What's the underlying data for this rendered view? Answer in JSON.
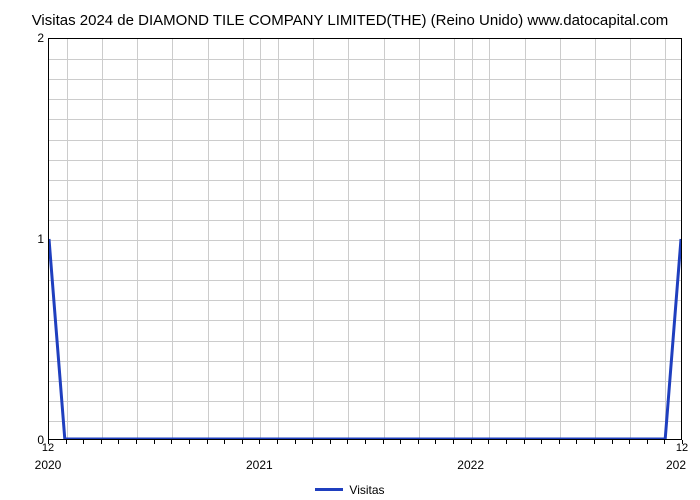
{
  "chart": {
    "type": "line",
    "title": "Visitas 2024 de DIAMOND TILE COMPANY LIMITED(THE) (Reino Unido) www.datocapital.com",
    "title_fontsize": 15,
    "title_color": "#000000",
    "background_color": "#ffffff",
    "plot_border_color": "#000000",
    "grid_color": "#cccccc",
    "ylim": [
      0,
      2
    ],
    "ytick_step": 1,
    "y_ticks": [
      0,
      1,
      2
    ],
    "x_axis": {
      "start": 2020,
      "end": 2023,
      "major_ticks": [
        2020,
        2021,
        2022
      ],
      "major_tick_labels": [
        "2020",
        "2021",
        "2022"
      ],
      "right_edge_label": "202",
      "minor_ticks_per_year": 12,
      "minor_labels": [
        {
          "pos_frac": 0.0,
          "text": "12"
        },
        {
          "pos_frac": 1.0,
          "text": "12"
        }
      ]
    },
    "series": {
      "name": "Visitas",
      "color": "#1f3fbf",
      "line_width": 3,
      "points": [
        {
          "x_frac": 0.0,
          "y": 1
        },
        {
          "x_frac": 0.025,
          "y": 0
        },
        {
          "x_frac": 0.975,
          "y": 0
        },
        {
          "x_frac": 1.0,
          "y": 1
        }
      ]
    },
    "legend": {
      "label": "Visitas",
      "swatch_color": "#1f3fbf"
    },
    "grid": {
      "h_fracs": [
        0.05,
        0.1,
        0.15,
        0.2,
        0.25,
        0.3,
        0.35,
        0.4,
        0.45,
        0.5,
        0.55,
        0.6,
        0.65,
        0.7,
        0.75,
        0.8,
        0.85,
        0.9,
        0.95
      ],
      "v_fracs": [
        0.0278,
        0.0833,
        0.1389,
        0.1944,
        0.25,
        0.3056,
        0.3333,
        0.3611,
        0.4167,
        0.4722,
        0.5278,
        0.5833,
        0.6389,
        0.6667,
        0.6944,
        0.75,
        0.8056,
        0.8611,
        0.9167,
        0.9722
      ]
    }
  }
}
